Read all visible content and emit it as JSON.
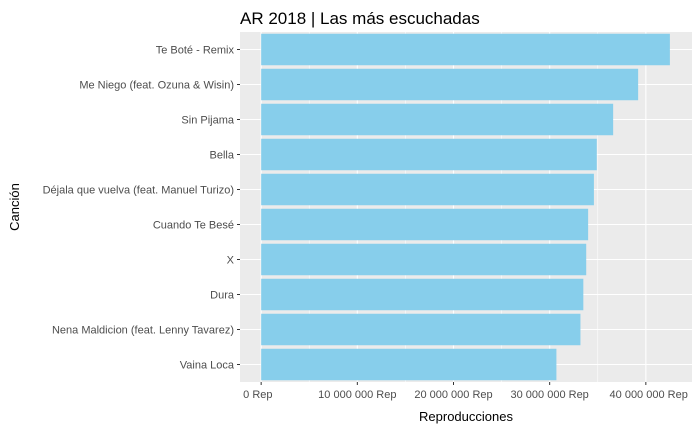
{
  "chart_data": {
    "type": "bar",
    "orientation": "horizontal",
    "title": "AR 2018 | Las más escuchadas",
    "xlabel": "Reproducciones",
    "ylabel": "Canción",
    "categories": [
      "Te Boté - Remix",
      "Me Niego (feat. Ozuna & Wisin)",
      "Sin Pijama",
      "Bella",
      "Déjala que vuelva (feat. Manuel Turizo)",
      "Cuando Te Besé",
      "X",
      "Dura",
      "Nena Maldicion (feat. Lenny Tavarez)",
      "Vaina Loca"
    ],
    "values": [
      42500000,
      39200000,
      36600000,
      34900000,
      34600000,
      34000000,
      33800000,
      33500000,
      33200000,
      30700000
    ],
    "xlim": [
      -2200000,
      44800000
    ],
    "xticks": [
      0,
      10000000,
      20000000,
      30000000,
      40000000
    ],
    "xtick_labels": [
      "0 Rep",
      "10 000 000 Rep",
      "20 000 000 Rep",
      "30 000 000 Rep",
      "40 000 000 Rep"
    ],
    "bar_color": "#87CEEB",
    "panel_color": "#EBEBEB",
    "grid": true,
    "legend": "none"
  }
}
